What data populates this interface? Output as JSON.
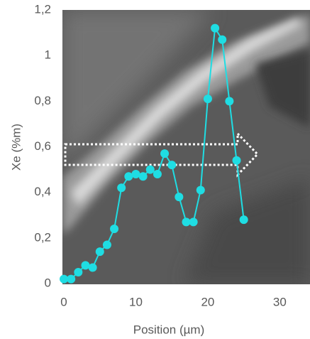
{
  "chart_data": {
    "type": "line",
    "x_label": "Position (µm)",
    "y_label": "Xe (%m)",
    "x": [
      0,
      1,
      2,
      3,
      4,
      5,
      6,
      7,
      8,
      9,
      10,
      11,
      12,
      13,
      14,
      15,
      16,
      17,
      18,
      19,
      20,
      21,
      22,
      23,
      24,
      25
    ],
    "series": [
      {
        "name": "Xe",
        "color": "#1fdde3",
        "values": [
          0.02,
          0.02,
          0.05,
          0.08,
          0.07,
          0.14,
          0.17,
          0.24,
          0.42,
          0.47,
          0.48,
          0.47,
          0.5,
          0.48,
          0.57,
          0.52,
          0.38,
          0.27,
          0.27,
          0.41,
          0.81,
          1.12,
          1.07,
          0.8,
          0.54,
          0.28
        ]
      }
    ],
    "xlim": [
      -0.2,
      34.2
    ],
    "ylim": [
      0,
      1.2
    ],
    "xticks": [
      0,
      10,
      20,
      30
    ],
    "yticks": [
      0,
      {
        "value": 0.2,
        "label": "0,2"
      },
      {
        "value": 0.4,
        "label": "0,4"
      },
      {
        "value": 0.6,
        "label": "0,6"
      },
      {
        "value": 0.8,
        "label": "0,8"
      },
      1,
      {
        "value": 1.2,
        "label": "1,2"
      }
    ],
    "grid": false
  }
}
